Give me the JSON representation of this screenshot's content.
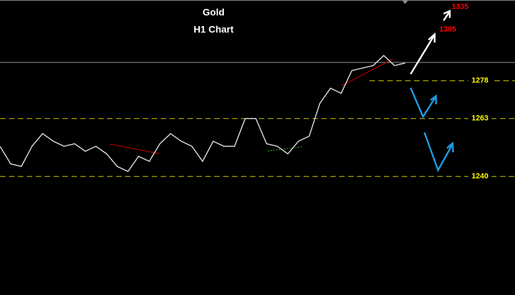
{
  "chart_data": {
    "type": "line",
    "title": "Gold",
    "subtitle": "H1 Chart",
    "values": [
      1252,
      1245,
      1244,
      1252,
      1257,
      1254,
      1252,
      1253,
      1250,
      1252,
      1249,
      1244,
      1242,
      1248,
      1246,
      1253,
      1257,
      1254,
      1252,
      1246,
      1254,
      1252,
      1252,
      1263,
      1263,
      1253,
      1252,
      1249,
      1254,
      1256,
      1269,
      1275,
      1273,
      1282,
      1283,
      1284,
      1288,
      1284,
      1285
    ],
    "color": "#d8d8d8",
    "ylim": [
      1193,
      1310
    ],
    "levels": [
      1278,
      1263,
      1240
    ],
    "level_color": "#a8a800",
    "targets": [
      1305,
      1335
    ],
    "target_color": "#ff0000"
  }
}
